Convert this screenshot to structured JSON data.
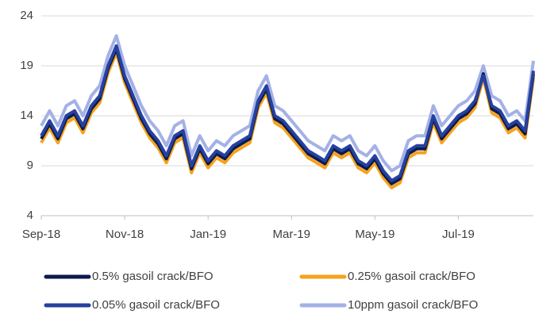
{
  "chart_data": {
    "type": "line",
    "categories": [
      "Sep-18",
      null,
      null,
      null,
      null,
      null,
      null,
      null,
      null,
      null,
      "Nov-18",
      null,
      null,
      null,
      null,
      null,
      null,
      null,
      null,
      null,
      "Jan-19",
      null,
      null,
      null,
      null,
      null,
      null,
      null,
      null,
      null,
      "Mar-19",
      null,
      null,
      null,
      null,
      null,
      null,
      null,
      null,
      null,
      "May-19",
      null,
      null,
      null,
      null,
      null,
      null,
      null,
      null,
      null,
      "Jul-19",
      null,
      null,
      null,
      null,
      null,
      null,
      null,
      null,
      null
    ],
    "ylim": [
      4,
      24
    ],
    "yticks": [
      4,
      9,
      14,
      19,
      24
    ],
    "grid": true,
    "series": [
      {
        "name": "0.5% gasoil crack/BFO",
        "color": "#0d1a4a",
        "values": [
          11.7,
          13.2,
          11.7,
          13.7,
          14.2,
          12.7,
          14.7,
          15.7,
          18.7,
          20.7,
          17.7,
          15.7,
          13.7,
          12.2,
          11.2,
          9.7,
          11.7,
          12.2,
          8.7,
          10.7,
          9.2,
          10.2,
          9.7,
          10.7,
          11.2,
          11.7,
          15.2,
          16.7,
          13.7,
          13.2,
          12.2,
          11.2,
          10.2,
          9.7,
          9.2,
          10.7,
          10.2,
          10.7,
          9.2,
          8.7,
          9.7,
          8.2,
          7.2,
          7.7,
          10.2,
          10.7,
          10.7,
          13.7,
          11.7,
          12.7,
          13.7,
          14.2,
          15.2,
          18.2,
          14.7,
          14.2,
          12.7,
          13.2,
          12.2,
          18.2
        ]
      },
      {
        "name": "0.25% gasoil crack/BFO",
        "color": "#f7a21b",
        "values": [
          11.3,
          12.8,
          11.3,
          13.3,
          13.8,
          12.3,
          14.3,
          15.3,
          18.3,
          20.3,
          17.3,
          15.3,
          13.3,
          11.8,
          10.8,
          9.3,
          11.3,
          11.8,
          8.3,
          10.3,
          8.8,
          9.8,
          9.3,
          10.3,
          10.8,
          11.3,
          14.8,
          16.3,
          13.3,
          12.8,
          11.8,
          10.8,
          9.8,
          9.3,
          8.8,
          10.3,
          9.8,
          10.3,
          8.8,
          8.3,
          9.3,
          7.8,
          6.8,
          7.3,
          9.8,
          10.3,
          10.3,
          13.3,
          11.3,
          12.3,
          13.3,
          13.8,
          14.8,
          17.8,
          14.3,
          13.8,
          12.3,
          12.8,
          11.8,
          17.8
        ]
      },
      {
        "name": "0.05% gasoil crack/BFO",
        "color": "#2541a0",
        "values": [
          12,
          13.5,
          12,
          14,
          14.5,
          13,
          15,
          16,
          19,
          21,
          18,
          16,
          14,
          12.5,
          11.5,
          10,
          12,
          12.5,
          9,
          11,
          9.5,
          10.5,
          10,
          11,
          11.5,
          12,
          15.5,
          17,
          14,
          13.5,
          12.5,
          11.5,
          10.5,
          10,
          9.5,
          11,
          10.5,
          11,
          9.5,
          9,
          10,
          8.5,
          7.5,
          8,
          10.5,
          11,
          11,
          14,
          12,
          13,
          14,
          14.5,
          15.5,
          18,
          15,
          14.5,
          13,
          13.5,
          12.5,
          18.5
        ]
      },
      {
        "name": "10ppm gasoil crack/BFO",
        "color": "#a3b1e6",
        "values": [
          13,
          14.5,
          13,
          15,
          15.5,
          14,
          16,
          17,
          20,
          22,
          19,
          17,
          15,
          13.5,
          12.5,
          11,
          13,
          13.5,
          10,
          12,
          10.5,
          11.5,
          11,
          12,
          12.5,
          13,
          16.5,
          18,
          15,
          14.5,
          13.5,
          12.5,
          11.5,
          11,
          10.5,
          12,
          11.5,
          12,
          10.5,
          10,
          11,
          9.5,
          8.5,
          9,
          11.5,
          12,
          12,
          15,
          13,
          14,
          15,
          15.5,
          16.5,
          19,
          16,
          15.5,
          14,
          14.5,
          13.5,
          19.5
        ]
      }
    ]
  }
}
